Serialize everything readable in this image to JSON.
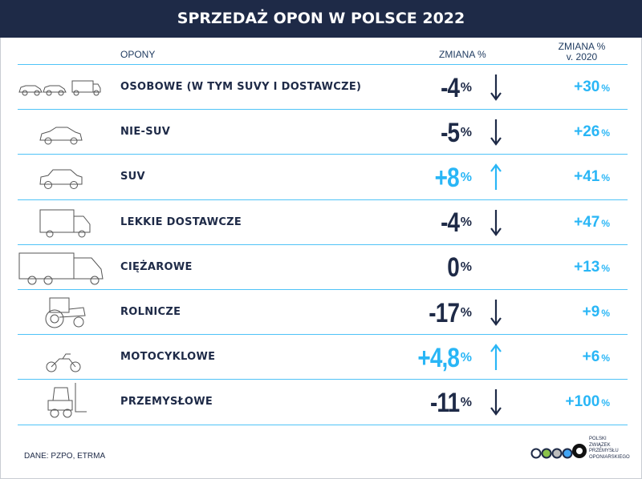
{
  "title": "SPRZEDAŻ OPON W POLSCE 2022",
  "headers": {
    "tires": "OPONY",
    "change": "ZMIANA %",
    "vs2020_line1": "ZMIANA %",
    "vs2020_line2": "v. 2020"
  },
  "colors": {
    "dark": "#1e2a47",
    "accent": "#29b6f6",
    "line": "#4fc3f7"
  },
  "rows": [
    {
      "icon": "cars-and-van-icon",
      "label": "OSOBOWE (W TYM SUVY I DOSTAWCZE)",
      "change": "-4",
      "pct": "%",
      "trend": "down",
      "vs2020": "+30",
      "vs2020_pct": "%"
    },
    {
      "icon": "sedan-car-icon",
      "label": "NIE-SUV",
      "change": "-5",
      "pct": "%",
      "trend": "down",
      "vs2020": "+26",
      "vs2020_pct": "%"
    },
    {
      "icon": "suv-car-icon",
      "label": "SUV",
      "change": "+8",
      "pct": "%",
      "trend": "up",
      "vs2020": "+41",
      "vs2020_pct": "%"
    },
    {
      "icon": "delivery-van-icon",
      "label": "LEKKIE DOSTAWCZE",
      "change": "-4",
      "pct": "%",
      "trend": "down",
      "vs2020": "+47",
      "vs2020_pct": "%"
    },
    {
      "icon": "truck-icon",
      "label": "CIĘŻAROWE",
      "change": "0",
      "pct": "%",
      "trend": "none",
      "vs2020": "+13",
      "vs2020_pct": "%"
    },
    {
      "icon": "tractor-icon",
      "label": "ROLNICZE",
      "change": "-17",
      "pct": "%",
      "trend": "down",
      "vs2020": "+9",
      "vs2020_pct": "%"
    },
    {
      "icon": "motorcycle-icon",
      "label": "MOTOCYKLOWE",
      "change": "+4,8",
      "pct": "%",
      "trend": "up",
      "vs2020": "+6",
      "vs2020_pct": "%"
    },
    {
      "icon": "forklift-icon",
      "label": "PRZEMYSŁOWE",
      "change": "-11",
      "pct": "%",
      "trend": "down",
      "vs2020": "+100",
      "vs2020_pct": "%"
    }
  ],
  "source": "DANE: PZPO, ETRMA",
  "logo": {
    "lines": [
      "POLSKI",
      "ZWIĄZEK",
      "PRZEMYSŁU",
      "OPONIARSKIEGO"
    ]
  }
}
